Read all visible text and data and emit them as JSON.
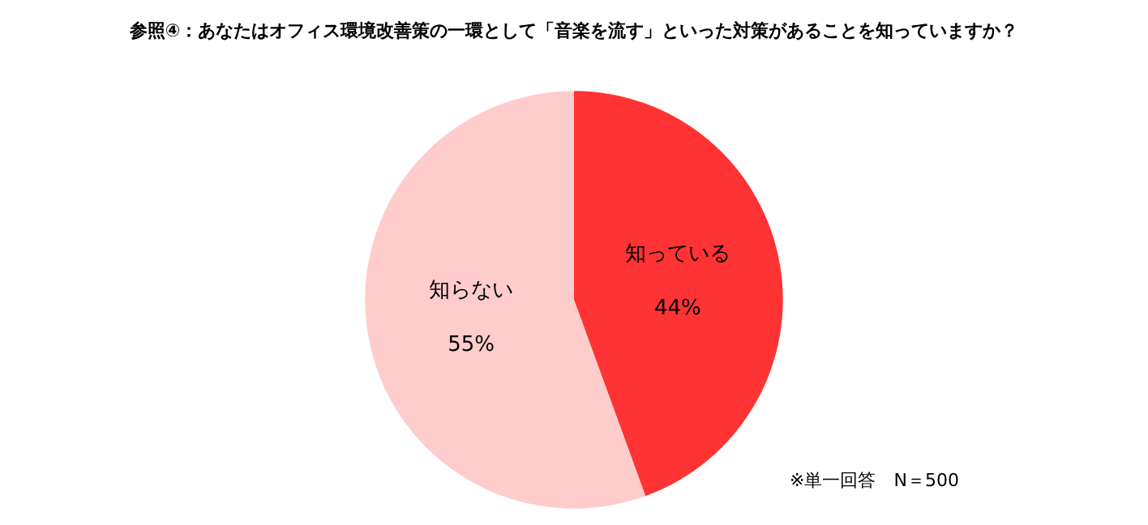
{
  "chart_data": {
    "type": "pie",
    "title": "参照④：あなたはオフィス環境改善策の一環として「音楽を流す」といった対策があることを知っていますか？",
    "categories": [
      "知っている",
      "知らない"
    ],
    "values": [
      44,
      55
    ],
    "value_labels": [
      "44%",
      "55%"
    ],
    "colors": [
      "#ff3333",
      "#ffcccc"
    ],
    "legend": false,
    "annotations": [
      "※単一回答　N＝500"
    ]
  }
}
